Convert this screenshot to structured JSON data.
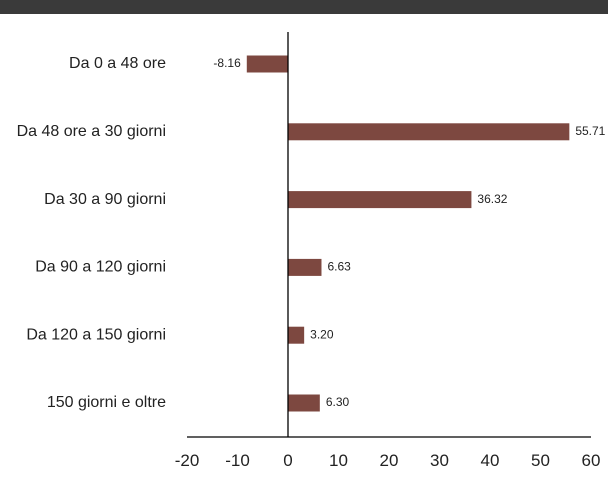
{
  "chart_data": {
    "type": "bar",
    "orientation": "horizontal",
    "categories": [
      "Da 0 a 48 ore",
      "Da 48 ore a 30 giorni",
      "Da 30 a 90 giorni",
      "Da 90 a 120 giorni",
      "Da 120 a 150 giorni",
      "150 giorni e oltre"
    ],
    "values": [
      -8.16,
      55.71,
      36.32,
      6.63,
      3.2,
      6.3
    ],
    "data_labels": [
      "-8.16",
      "55.71",
      "36.32",
      "6.63",
      "3.20",
      "6.30"
    ],
    "xlim": [
      -20,
      60
    ],
    "xticks": [
      -20,
      -10,
      0,
      10,
      20,
      30,
      40,
      50,
      60
    ],
    "xtick_labels": [
      "-20",
      "-10",
      "0",
      "10",
      "20",
      "30",
      "40",
      "50",
      "60"
    ],
    "title": "",
    "xlabel": "",
    "ylabel": "",
    "grid": false,
    "legend": "none",
    "bar_color": "#7d4840",
    "axis_color": "#000000",
    "header_rule_color": "#3a3a3a"
  }
}
